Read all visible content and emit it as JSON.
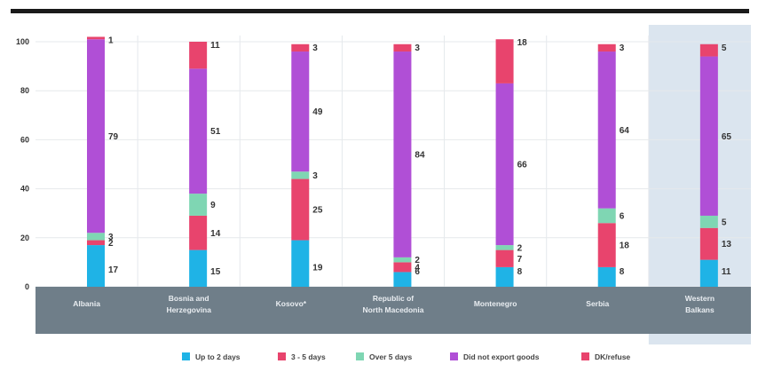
{
  "chart_data": {
    "type": "bar",
    "stacked": true,
    "orientation": "vertical",
    "categories": [
      [
        "Albania"
      ],
      [
        "Bosnia and",
        "Herzegovina"
      ],
      [
        "Kosovo*"
      ],
      [
        "Republic of",
        "North Macedonia"
      ],
      [
        "Montenegro"
      ],
      [
        "Serbia"
      ],
      [
        "Western",
        "Balkans"
      ]
    ],
    "highlight_category_index": 6,
    "ylim": [
      0,
      100
    ],
    "yticks": [
      "0",
      "20",
      "40",
      "60",
      "80",
      "100"
    ],
    "grid": true,
    "legend_position": "bottom",
    "series": [
      {
        "name": "Up to 2 days",
        "color": "#1fb3e6",
        "values": [
          17,
          15,
          19,
          6,
          8,
          8,
          11
        ]
      },
      {
        "name": "3 - 5 days",
        "color": "#e8446d",
        "values": [
          2,
          14,
          25,
          4,
          7,
          18,
          13
        ]
      },
      {
        "name": "Over 5 days",
        "color": "#7fd6b3",
        "values": [
          3,
          9,
          3,
          2,
          2,
          6,
          5
        ]
      },
      {
        "name": "Did not export goods",
        "color": "#b04fd6",
        "values": [
          79,
          51,
          49,
          84,
          66,
          64,
          65
        ]
      },
      {
        "name": "DK/refuse",
        "color": "#e8446d",
        "values": [
          1,
          11,
          3,
          3,
          18,
          3,
          5
        ]
      }
    ]
  }
}
